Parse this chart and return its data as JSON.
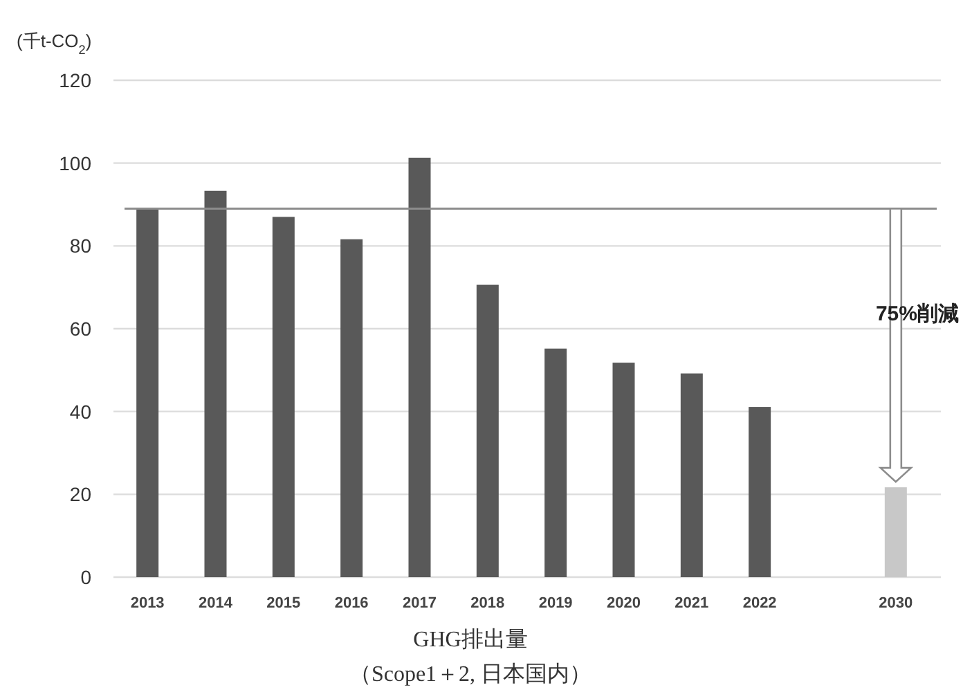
{
  "chart_data": {
    "type": "bar",
    "ylabel": "(千t-CO$_{2}$)",
    "xlabel": "GHG排出量",
    "annotations": [
      "75%削減",
      "（Scope1＋2, 日本国内）"
    ],
    "categories": [
      "2013",
      "2014",
      "2015",
      "2016",
      "2017",
      "2018",
      "2019",
      "2020",
      "2021",
      "2022",
      null,
      "2030"
    ],
    "values": [
      89,
      93.3,
      87,
      81.6,
      101.3,
      70.6,
      55.2,
      51.8,
      49.2,
      41.1,
      null,
      21.7
    ],
    "colors": [
      "#595959",
      "#595959",
      "#595959",
      "#595959",
      "#595959",
      "#595959",
      "#595959",
      "#595959",
      "#595959",
      "#595959",
      null,
      "#c8c8c8"
    ],
    "ylim": [
      0,
      120
    ],
    "yticks": [
      0,
      20,
      40,
      60,
      80,
      100,
      120
    ],
    "grid": "y",
    "ref_lines": [
      {
        "axis": "y",
        "value": 89,
        "color": "#8c8c8c"
      }
    ]
  }
}
